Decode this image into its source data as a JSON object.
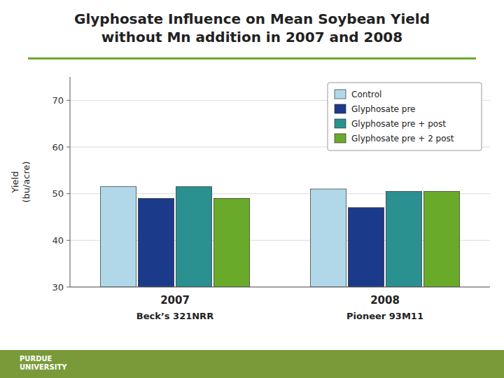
{
  "chart_data": {
    "type": "bar",
    "title": "Glyphosate Influence on Mean Soybean Yield\nwithout Mn addition in 2007 and 2008",
    "y_label": "Yield\n(bu/acre)",
    "categories": [
      "2007",
      "2008"
    ],
    "series": [
      {
        "name": "Control",
        "color": "#b0d8e8",
        "values": [
          51.5,
          51.0
        ]
      },
      {
        "name": "Glyphosate pre",
        "color": "#1c3a8a",
        "values": [
          49.0,
          47.0
        ]
      },
      {
        "name": "Glyphosate pre + post",
        "color": "#2a9090",
        "values": [
          51.5,
          50.5
        ]
      },
      {
        "name": "Glyphosate pre + 2 post",
        "color": "#6aaa2a",
        "values": [
          49.0,
          50.5
        ]
      }
    ],
    "ylim": [
      30,
      75
    ],
    "yticks": [
      30,
      40,
      50,
      60,
      70
    ],
    "grid": true,
    "legend": "upper right",
    "annotations": [
      {
        "text": "Beck’s 321NRR",
        "category": "2007"
      },
      {
        "text": "Pioneer 93M11",
        "category": "2008"
      },
      {
        "text": "PURDUE\nUNIVERSITY"
      }
    ]
  }
}
